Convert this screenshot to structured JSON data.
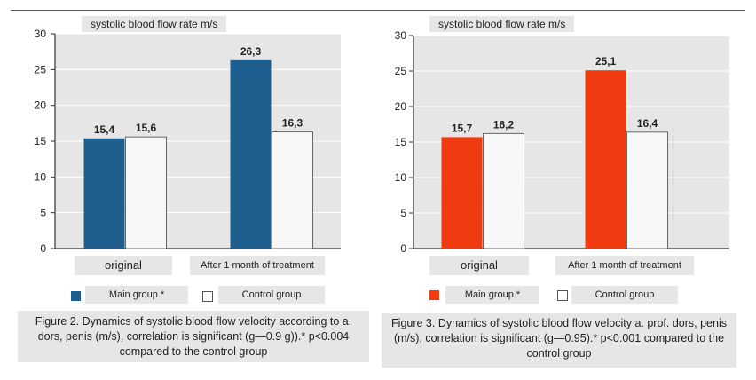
{
  "chart_data": [
    {
      "type": "bar",
      "title": "systolic blood flow rate m/s",
      "categories": [
        "original",
        "After 1 month of treatment"
      ],
      "series": [
        {
          "name": "Main group *",
          "values": [
            15.4,
            26.3
          ],
          "labels": [
            "15,4",
            "26,3"
          ],
          "color": "#1f5f8f"
        },
        {
          "name": "Control group",
          "values": [
            15.6,
            16.3
          ],
          "labels": [
            "15,6",
            "16,3"
          ],
          "color": "#f7f7f7"
        }
      ],
      "ylim": [
        0,
        30
      ],
      "yticks": [
        "0",
        "5",
        "10",
        "15",
        "20",
        "25",
        "30"
      ],
      "grid": true,
      "legend": "bottom",
      "caption": "Figure 2. Dynamics of systolic blood flow velocity according to a. dors, penis (m/s), correlation is significant (g—0.9 g)).* p<0.004 compared to the control group"
    },
    {
      "type": "bar",
      "title": "systolic blood flow rate m/s",
      "categories": [
        "original",
        "After 1 month of treatment"
      ],
      "series": [
        {
          "name": "Main group *",
          "values": [
            15.7,
            25.1
          ],
          "labels": [
            "15,7",
            "25,1"
          ],
          "color": "#f03a10"
        },
        {
          "name": "Control group",
          "values": [
            16.2,
            16.4
          ],
          "labels": [
            "16,2",
            "16,4"
          ],
          "color": "#f7f7f7"
        }
      ],
      "ylim": [
        0,
        30
      ],
      "yticks": [
        "0",
        "5",
        "10",
        "15",
        "20",
        "25",
        "30"
      ],
      "grid": true,
      "legend": "bottom",
      "caption": "Figure 3. Dynamics of systolic blood flow velocity a. prof. dors, penis (m/s), correlation is significant (g—0.95).* p<0.001 compared to the control group"
    }
  ]
}
